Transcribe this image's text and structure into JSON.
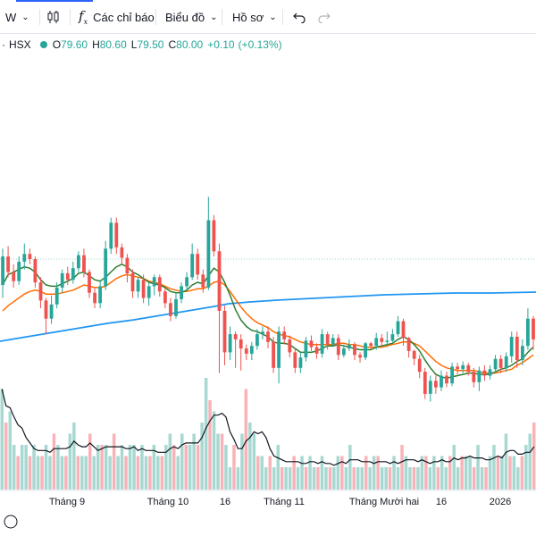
{
  "toolbar": {
    "interval": "W",
    "indicators_label": "Các chỉ báo",
    "chart_type_label": "Biểu đồ",
    "profile_label": "Hồ sơ"
  },
  "legend": {
    "symbol": "HSX",
    "open_prefix": "O",
    "open": "79.60",
    "high_prefix": "H",
    "high": "80.60",
    "low_prefix": "L",
    "low": "79.50",
    "close_prefix": "C",
    "close": "80.00",
    "change": "+0.10",
    "change_pct": "(+0.13%)"
  },
  "colors": {
    "up": "#26a69a",
    "down": "#ef5350",
    "ma_fast": "#2e7d32",
    "ma_mid": "#ff6d00",
    "ma_slow": "#2196f3"
  },
  "chart_data": {
    "type": "candlestick",
    "x_labels": [
      "Tháng 9",
      "Tháng 10",
      "16",
      "Tháng 11",
      "Tháng Mười hai",
      "16",
      "2026"
    ],
    "candles": [
      [
        78.0,
        80.2,
        77.0,
        80.8,
        1
      ],
      [
        80.2,
        79.0,
        78.6,
        81.0,
        0
      ],
      [
        79.0,
        78.3,
        77.8,
        79.6,
        0
      ],
      [
        78.3,
        79.8,
        78.0,
        80.2,
        2
      ],
      [
        79.8,
        80.4,
        79.2,
        81.2,
        3
      ],
      [
        80.4,
        80.0,
        79.6,
        80.8,
        2
      ],
      [
        80.0,
        78.2,
        77.8,
        80.2,
        4
      ],
      [
        78.2,
        76.8,
        76.2,
        78.6,
        6
      ],
      [
        76.8,
        75.4,
        74.2,
        77.0,
        8
      ],
      [
        75.4,
        76.5,
        75.0,
        77.2,
        4
      ],
      [
        76.5,
        77.8,
        76.2,
        78.2,
        3
      ],
      [
        77.8,
        78.9,
        77.4,
        79.2,
        5
      ],
      [
        78.9,
        78.4,
        78.0,
        79.4,
        3
      ],
      [
        78.4,
        79.3,
        78.1,
        79.8,
        4
      ],
      [
        79.3,
        80.3,
        79.0,
        80.6,
        6
      ],
      [
        80.3,
        79.0,
        78.6,
        80.8,
        3
      ],
      [
        79.0,
        77.4,
        77.0,
        79.2,
        7
      ],
      [
        77.4,
        76.6,
        76.2,
        77.8,
        3
      ],
      [
        76.6,
        77.9,
        76.2,
        78.4,
        6
      ],
      [
        77.9,
        80.8,
        77.6,
        81.4,
        7
      ],
      [
        80.8,
        82.8,
        80.4,
        83.2,
        8
      ],
      [
        82.8,
        80.9,
        80.4,
        83.2,
        4
      ],
      [
        80.9,
        80.1,
        79.6,
        81.2,
        6
      ],
      [
        80.1,
        78.9,
        78.2,
        80.4,
        4
      ],
      [
        78.9,
        77.5,
        77.0,
        79.2,
        5
      ],
      [
        77.5,
        78.4,
        77.0,
        78.6,
        3
      ],
      [
        78.4,
        77.0,
        76.6,
        78.8,
        4
      ],
      [
        77.0,
        77.9,
        76.4,
        78.2,
        3
      ],
      [
        77.9,
        78.6,
        77.2,
        78.8,
        2
      ],
      [
        78.6,
        77.5,
        77.1,
        78.8,
        5
      ],
      [
        77.5,
        76.6,
        76.2,
        77.8,
        4
      ],
      [
        76.6,
        75.6,
        75.2,
        77.0,
        3
      ],
      [
        75.6,
        76.9,
        75.4,
        77.4,
        4
      ],
      [
        76.9,
        77.9,
        76.6,
        78.2,
        5
      ],
      [
        77.9,
        78.6,
        77.6,
        79.0,
        3
      ],
      [
        78.6,
        80.4,
        78.4,
        81.2,
        4
      ],
      [
        80.4,
        78.8,
        78.4,
        80.8,
        3
      ],
      [
        78.8,
        77.8,
        77.4,
        79.2,
        5
      ],
      [
        77.8,
        83.0,
        77.6,
        84.8,
        6
      ],
      [
        83.0,
        80.6,
        80.2,
        83.4,
        8
      ],
      [
        80.6,
        76.0,
        71.2,
        81.2,
        9
      ],
      [
        76.0,
        72.8,
        71.8,
        76.4,
        8
      ],
      [
        72.8,
        74.2,
        72.2,
        74.8,
        7
      ],
      [
        74.2,
        73.8,
        71.6,
        74.4,
        5
      ],
      [
        73.8,
        73.1,
        71.4,
        74.2,
        3
      ],
      [
        73.1,
        72.7,
        72.2,
        73.4,
        4
      ],
      [
        72.7,
        73.3,
        72.2,
        73.6,
        3
      ],
      [
        73.3,
        74.2,
        73.0,
        74.6,
        2
      ],
      [
        74.2,
        74.4,
        73.8,
        74.8,
        3
      ],
      [
        74.4,
        73.6,
        73.1,
        74.8,
        4
      ],
      [
        73.6,
        71.6,
        71.2,
        74.0,
        2
      ],
      [
        71.6,
        74.4,
        70.4,
        74.8,
        4
      ],
      [
        74.4,
        73.8,
        73.4,
        74.8,
        3
      ],
      [
        73.8,
        72.8,
        72.4,
        74.1,
        2
      ],
      [
        72.8,
        71.6,
        71.2,
        73.1,
        3
      ],
      [
        71.6,
        72.4,
        71.2,
        72.8,
        4
      ],
      [
        72.4,
        73.7,
        72.1,
        74.0,
        3
      ],
      [
        73.7,
        73.2,
        72.9,
        74.1,
        2
      ],
      [
        73.2,
        72.7,
        72.3,
        73.5,
        3
      ],
      [
        72.7,
        74.2,
        72.4,
        74.6,
        3
      ],
      [
        74.2,
        73.4,
        73.0,
        74.4,
        2
      ],
      [
        73.4,
        73.9,
        73.2,
        74.2,
        2
      ],
      [
        73.9,
        72.6,
        72.2,
        74.2,
        2
      ],
      [
        72.6,
        73.1,
        72.4,
        73.4,
        2
      ],
      [
        73.1,
        73.4,
        72.9,
        73.8,
        2
      ],
      [
        73.4,
        72.6,
        72.2,
        73.6,
        2
      ],
      [
        72.6,
        72.4,
        72.0,
        72.8,
        2
      ],
      [
        72.4,
        73.5,
        72.2,
        73.6,
        3
      ],
      [
        73.5,
        73.3,
        73.0,
        73.6,
        2
      ],
      [
        73.3,
        73.9,
        73.0,
        74.3,
        3
      ],
      [
        73.9,
        73.6,
        73.2,
        74.2,
        2
      ],
      [
        73.6,
        73.7,
        73.2,
        74.4,
        4
      ],
      [
        73.7,
        74.2,
        73.6,
        74.6,
        3
      ],
      [
        74.2,
        75.2,
        74.0,
        75.6,
        5
      ],
      [
        75.2,
        73.9,
        73.3,
        75.4,
        5
      ],
      [
        73.9,
        72.9,
        72.4,
        74.0,
        3
      ],
      [
        72.9,
        72.3,
        71.8,
        73.0,
        4
      ],
      [
        72.3,
        71.3,
        70.8,
        72.6,
        3
      ],
      [
        71.3,
        69.6,
        69.2,
        71.6,
        4
      ],
      [
        69.6,
        70.6,
        69.0,
        71.0,
        2
      ],
      [
        70.6,
        70.1,
        69.6,
        71.0,
        3
      ],
      [
        70.1,
        71.0,
        69.8,
        71.4,
        2
      ],
      [
        71.0,
        70.4,
        70.1,
        71.3,
        3
      ],
      [
        70.4,
        71.7,
        70.2,
        72.0,
        4
      ],
      [
        71.7,
        71.5,
        71.1,
        72.0,
        3
      ],
      [
        71.5,
        71.8,
        71.2,
        72.1,
        2
      ],
      [
        71.8,
        71.3,
        71.0,
        72.0,
        2
      ],
      [
        71.3,
        70.5,
        70.1,
        71.6,
        3
      ],
      [
        70.5,
        71.4,
        69.8,
        71.7,
        3
      ],
      [
        71.4,
        71.0,
        70.6,
        71.8,
        2
      ],
      [
        71.0,
        71.5,
        70.7,
        71.8,
        3
      ],
      [
        71.5,
        72.3,
        71.2,
        72.6,
        4
      ],
      [
        72.3,
        71.6,
        71.2,
        72.6,
        2
      ],
      [
        71.6,
        72.5,
        71.3,
        72.8,
        5
      ],
      [
        72.5,
        74.0,
        72.0,
        74.4,
        6
      ],
      [
        74.0,
        72.2,
        71.6,
        74.4,
        5
      ],
      [
        72.2,
        73.3,
        71.8,
        73.8,
        6
      ],
      [
        73.3,
        75.4,
        73.0,
        76.2,
        6
      ],
      [
        75.4,
        73.8,
        73.0,
        75.6,
        5
      ]
    ],
    "ma_fast": [
      78.0,
      78.8,
      79.0,
      79.2,
      79.4,
      79.3,
      79.0,
      78.4,
      78.0,
      77.9,
      77.9,
      78.1,
      78.3,
      78.5,
      78.9,
      79.0,
      78.7,
      78.4,
      78.3,
      78.6,
      79.0,
      79.4,
      79.6,
      79.4,
      79.0,
      78.8,
      78.5,
      78.2,
      78.1,
      78.0,
      77.8,
      77.5,
      77.4,
      77.4,
      77.6,
      78.0,
      78.2,
      78.1,
      78.7,
      79.3,
      79.0,
      78.2,
      77.2,
      76.1,
      75.3,
      74.8,
      74.5,
      74.4,
      74.2,
      74.0,
      73.6,
      73.5,
      73.5,
      73.4,
      73.1,
      72.8,
      72.8,
      72.8,
      72.9,
      73.1,
      73.3,
      73.3,
      73.4,
      73.3,
      73.2,
      73.1,
      73.0,
      73.0,
      73.0,
      73.2,
      73.3,
      73.4,
      73.5,
      73.8,
      74.0,
      73.8,
      73.4,
      72.9,
      72.2,
      71.6,
      71.1,
      70.9,
      70.8,
      70.9,
      71.0,
      71.1,
      71.2,
      71.2,
      71.1,
      71.1,
      71.1,
      71.3,
      71.5,
      71.6,
      71.8,
      72.1,
      72.3,
      72.8,
      73.2
    ],
    "ma_mid": [
      76.0,
      76.4,
      76.7,
      77.0,
      77.3,
      77.5,
      77.6,
      77.5,
      77.3,
      77.3,
      77.3,
      77.4,
      77.5,
      77.6,
      77.8,
      78.0,
      77.9,
      77.8,
      77.8,
      77.9,
      78.2,
      78.5,
      78.7,
      78.8,
      78.7,
      78.6,
      78.5,
      78.3,
      78.2,
      78.1,
      77.9,
      77.7,
      77.6,
      77.5,
      77.5,
      77.6,
      77.7,
      77.7,
      77.9,
      78.2,
      78.3,
      78.0,
      77.5,
      76.9,
      76.3,
      75.8,
      75.4,
      75.1,
      74.9,
      74.7,
      74.4,
      74.2,
      74.1,
      74.0,
      73.8,
      73.6,
      73.5,
      73.4,
      73.4,
      73.4,
      73.4,
      73.4,
      73.5,
      73.5,
      73.4,
      73.4,
      73.3,
      73.2,
      73.2,
      73.2,
      73.2,
      73.3,
      73.4,
      73.5,
      73.6,
      73.6,
      73.5,
      73.3,
      72.9,
      72.5,
      72.1,
      71.8,
      71.6,
      71.5,
      71.4,
      71.4,
      71.4,
      71.4,
      71.3,
      71.2,
      71.2,
      71.2,
      71.3,
      71.4,
      71.5,
      71.8,
      72.0,
      72.3,
      72.6
    ],
    "ma_slow": [
      [
        0,
        382
      ],
      [
        30,
        377
      ],
      [
        60,
        372
      ],
      [
        90,
        367
      ],
      [
        120,
        362
      ],
      [
        150,
        358
      ],
      [
        180,
        353
      ],
      [
        210,
        348
      ],
      [
        240,
        343
      ],
      [
        256,
        340
      ],
      [
        280,
        338
      ],
      [
        310,
        336
      ],
      [
        350,
        334
      ],
      [
        390,
        332
      ],
      [
        430,
        330
      ],
      [
        470,
        329
      ],
      [
        510,
        328
      ],
      [
        550,
        328
      ],
      [
        600,
        327
      ]
    ],
    "volumes": [
      9,
      6,
      7,
      4,
      3,
      4,
      4,
      3,
      4,
      3,
      3,
      4,
      3,
      5,
      4,
      3,
      3,
      5,
      6,
      3,
      3,
      3,
      5,
      3,
      4,
      4,
      4,
      3,
      5,
      3,
      4,
      3,
      4,
      4,
      3,
      4,
      3,
      3,
      4,
      3,
      3,
      4,
      5,
      4,
      3,
      5,
      4,
      4,
      5,
      4,
      6,
      10,
      8,
      7,
      5,
      5,
      4,
      2,
      4,
      2,
      5,
      9,
      6,
      5,
      3,
      3,
      2,
      3,
      2,
      4,
      2,
      2,
      2,
      3,
      2,
      3,
      2,
      3,
      2,
      2,
      3,
      2,
      2,
      2,
      3,
      3,
      2,
      4,
      2,
      2,
      2,
      3,
      2,
      3,
      3,
      2,
      2,
      2,
      3,
      2,
      4,
      3,
      2,
      2,
      2,
      3,
      3,
      2,
      3,
      2,
      3,
      2,
      3,
      4,
      2,
      3,
      3,
      3,
      2,
      4,
      2,
      2,
      3,
      4,
      3,
      3,
      5,
      3,
      3,
      2,
      3,
      4,
      5,
      6
    ]
  }
}
